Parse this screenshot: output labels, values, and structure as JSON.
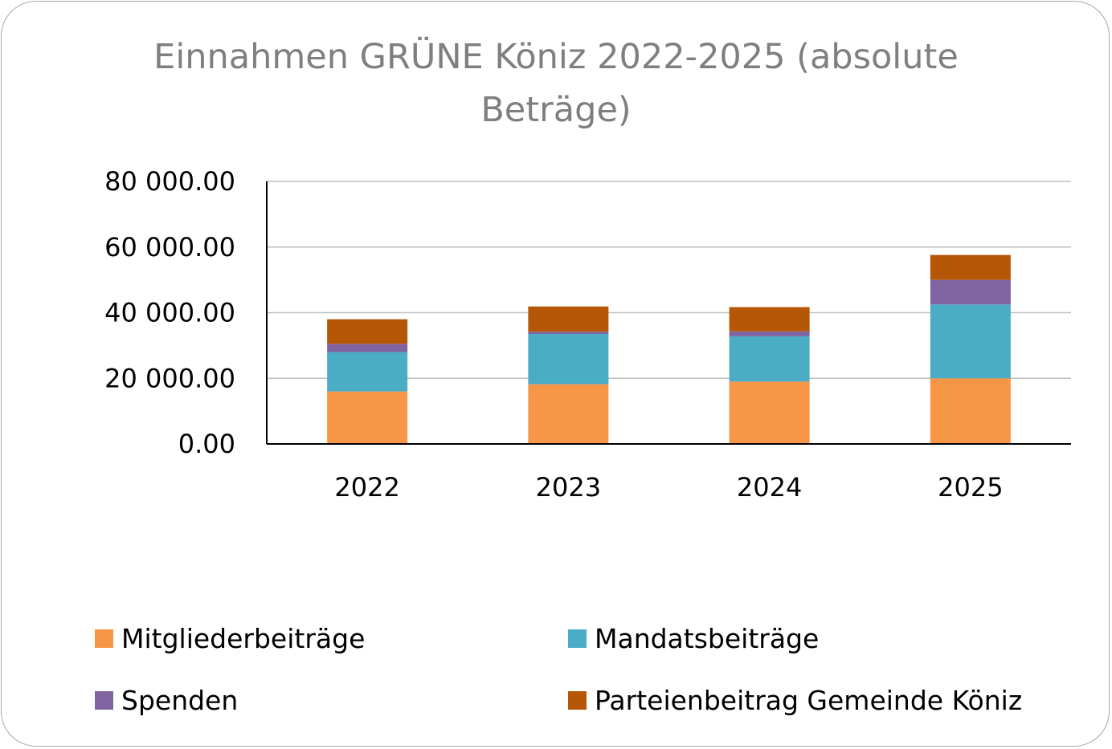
{
  "chart_data": {
    "type": "bar",
    "stacked": true,
    "title": "Einnahmen GRÜNE Köniz 2022-2025 (absolute Beträge)",
    "categories": [
      "2022",
      "2023",
      "2024",
      "2025"
    ],
    "series": [
      {
        "name": "Mitgliederbeiträge",
        "color": "#f79646",
        "values": [
          16000,
          18200,
          19000,
          20000
        ]
      },
      {
        "name": "Mandatsbeiträge",
        "color": "#4bacc6",
        "values": [
          12000,
          15300,
          13800,
          22500
        ]
      },
      {
        "name": "Spenden",
        "color": "#8064a2",
        "values": [
          2500,
          700,
          1500,
          7500
        ]
      },
      {
        "name": "Parteienbeitrag Gemeinde Köniz",
        "color": "#b65708",
        "values": [
          7500,
          7700,
          7400,
          7600
        ]
      }
    ],
    "ylim": [
      0,
      80000
    ],
    "yticks": [
      0,
      20000,
      40000,
      60000,
      80000
    ],
    "ytick_labels": [
      "0.00",
      "20 000.00",
      "40 000.00",
      "60 000.00",
      "80 000.00"
    ],
    "grid": true,
    "legend": "bottom"
  }
}
